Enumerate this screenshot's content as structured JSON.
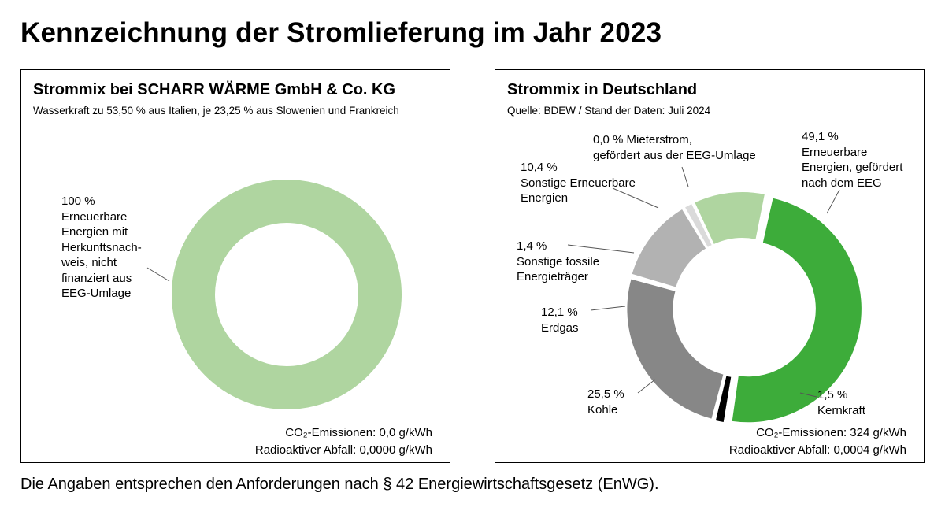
{
  "title": "Kennzeichnung der Stromlieferung im Jahr 2023",
  "footnote": "Die Angaben entsprechen den Anforderungen nach § 42 Energiewirtschaftsgesetz (EnWG).",
  "colors": {
    "renewable_light": "#afd5a0",
    "renewable_green": "#3dac3a",
    "nuclear": "#000000",
    "coal": "#878787",
    "gas": "#b2b2b2",
    "other_fossil": "#dadada",
    "tenant_power": "#ffffff"
  },
  "chart_data": [
    {
      "type": "pie",
      "title": "Strommix bei SCHARR WÄRME GmbH & Co. KG",
      "subtitle": "Wasserkraft zu 53,50 % aus Italien, je 23,25 % aus Slowenien und Frankreich",
      "slices": [
        {
          "label": "100 %\nErneuerbare\nEnergien mit\nHerkunftsnach-\nweis, nicht\nfinanziert aus\nEEG-Umlage",
          "value": 100,
          "color": "#afd5a0"
        }
      ],
      "co2": "CO₂-Emissionen: 0,0 g/kWh",
      "waste": "Radioaktiver Abfall: 0,0000 g/kWh"
    },
    {
      "type": "pie",
      "title": "Strommix in Deutschland",
      "subtitle": "Quelle: BDEW / Stand der Daten: Juli 2024",
      "slices": [
        {
          "label": "49,1 %\nErneuerbare\nEnergien, gefördert\nnach dem EEG",
          "value": 49.1,
          "color": "#3dac3a"
        },
        {
          "label": "1,5 %\nKernkraft",
          "value": 1.5,
          "color": "#000000"
        },
        {
          "label": "25,5 %\nKohle",
          "value": 25.5,
          "color": "#878787"
        },
        {
          "label": "12,1 %\nErdgas",
          "value": 12.1,
          "color": "#b2b2b2"
        },
        {
          "label": "1,4 %\nSonstige fossile\nEnergieträger",
          "value": 1.4,
          "color": "#dadada"
        },
        {
          "label": "10,4 %\nSonstige Erneuerbare\nEnergien",
          "value": 10.4,
          "color": "#afd5a0"
        },
        {
          "label": "0,0 % Mieterstrom,\ngefördert aus der EEG-Umlage",
          "value": 0.0,
          "color": "#ffffff"
        }
      ],
      "co2": "CO₂-Emissionen: 324 g/kWh",
      "waste": "Radioaktiver Abfall: 0,0004 g/kWh"
    }
  ]
}
